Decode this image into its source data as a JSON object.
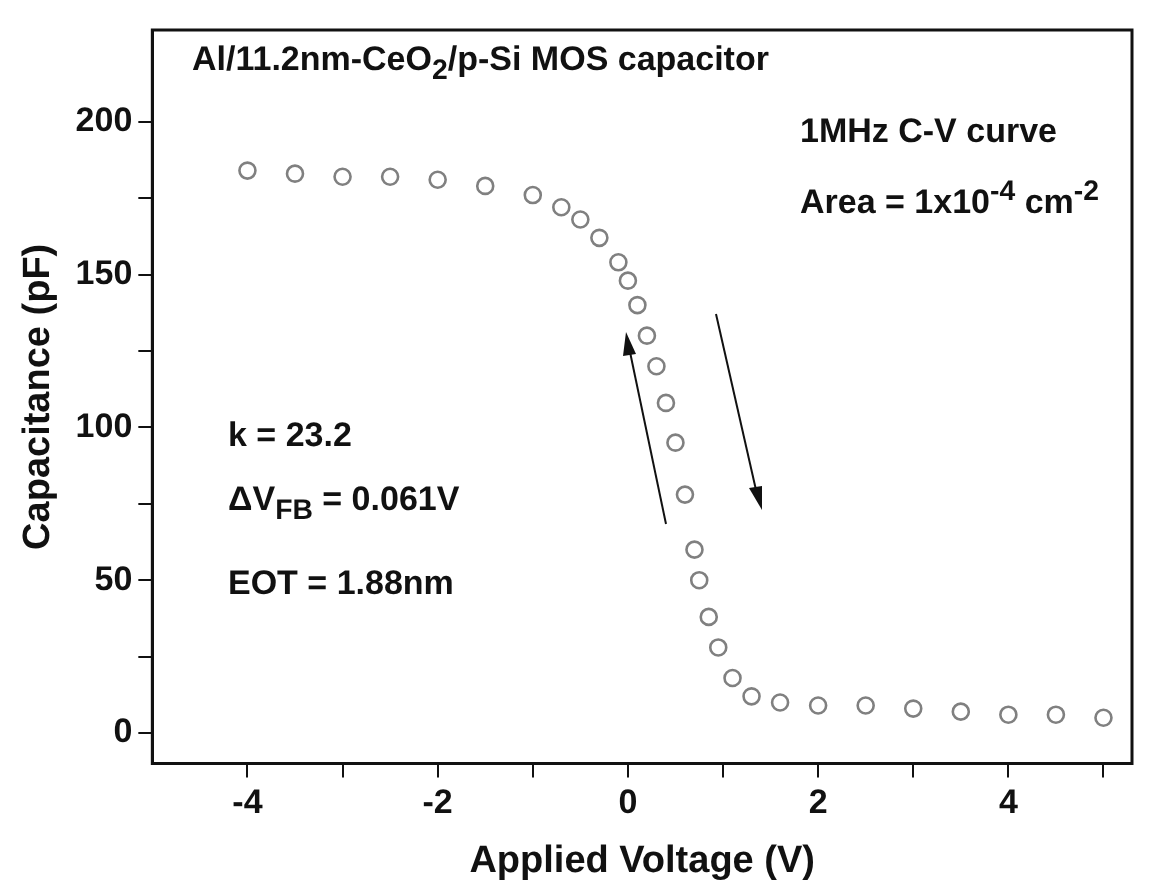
{
  "chart_data": {
    "type": "scatter",
    "title": "Al/11.2nm-CeO$_{2}$/p-Si MOS capacitor",
    "xlabel": "Applied Voltage (V)",
    "ylabel": "Capacitance (pF)",
    "annotations": [
      "1MHz C-V curve",
      "Area = 1x10$^{-4}$ cm$^{-2}$",
      "k = 23.2",
      "ΔV$_{FB}$ = 0.061V",
      "EOT = 1.88nm"
    ],
    "x": [
      -4,
      -3.5,
      -3,
      -2.5,
      -2,
      -1.5,
      -1,
      -0.7,
      -0.5,
      -0.3,
      -0.1,
      0,
      0.1,
      0.2,
      0.3,
      0.4,
      0.5,
      0.6,
      0.7,
      0.75,
      0.85,
      0.95,
      1.1,
      1.3,
      1.6,
      2,
      2.5,
      3,
      3.5,
      4,
      4.5,
      5
    ],
    "series": [
      {
        "color": "#808080",
        "values": [
          184,
          183,
          182,
          182,
          181,
          179,
          176,
          172,
          168,
          162,
          154,
          148,
          140,
          130,
          120,
          108,
          95,
          78,
          60,
          50,
          38,
          28,
          18,
          12,
          10,
          9,
          9,
          8,
          7,
          6,
          6,
          5
        ]
      }
    ],
    "xlim": [
      -5,
      5.3
    ],
    "ylim": [
      -10,
      230
    ],
    "xticks": [
      -4,
      {
        "value": -3,
        "label": null
      },
      -2,
      {
        "value": -1,
        "label": null
      },
      0,
      {
        "value": 1,
        "label": null
      },
      2,
      {
        "value": 3,
        "label": null
      },
      4,
      {
        "value": 5,
        "label": null
      }
    ],
    "yticks": [
      0,
      {
        "value": 25,
        "label": null
      },
      50,
      {
        "value": 75,
        "label": null
      },
      100,
      {
        "value": 125,
        "label": null
      },
      150,
      {
        "value": 175,
        "label": null
      },
      200
    ],
    "grid": false,
    "legend": false,
    "marker": "circle"
  }
}
